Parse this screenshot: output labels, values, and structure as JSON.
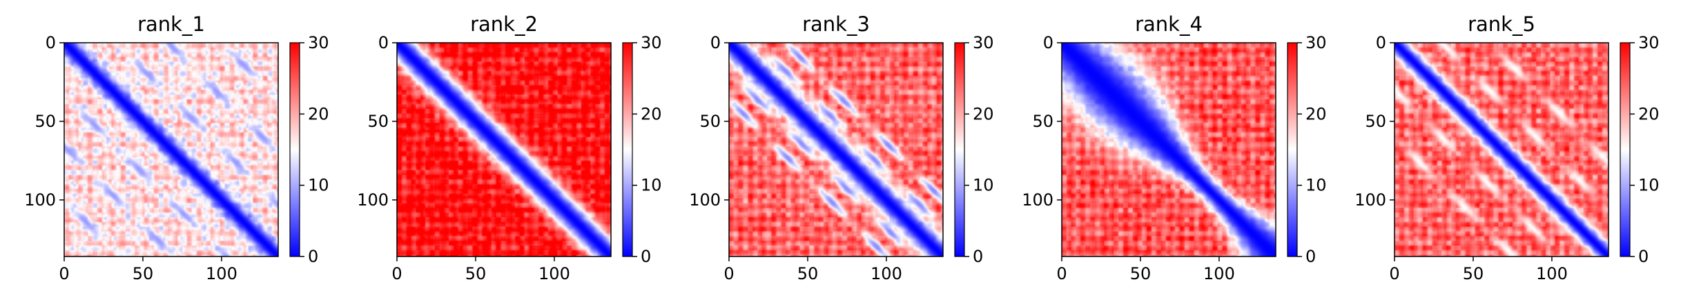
{
  "chart_data": [
    {
      "type": "heatmap",
      "title": "rank_1",
      "x_ticks": [
        "0",
        "50",
        "100"
      ],
      "y_ticks": [
        "0",
        "50",
        "100"
      ],
      "xlim": [
        0,
        136
      ],
      "ylim": [
        136,
        0
      ],
      "n": 136,
      "colormap": "bwr",
      "colorbar_range": [
        0,
        30
      ],
      "colorbar_ticks": [
        "0",
        "10",
        "20",
        "30"
      ],
      "field": {
        "base": 17,
        "diag_width": 6,
        "offdiag_bands": [
          33,
          66,
          100
        ],
        "offdiag_level": 9,
        "block_level": 0
      }
    },
    {
      "type": "heatmap",
      "title": "rank_2",
      "x_ticks": [
        "0",
        "50",
        "100"
      ],
      "y_ticks": [
        "0",
        "50",
        "100"
      ],
      "xlim": [
        0,
        136
      ],
      "ylim": [
        136,
        0
      ],
      "n": 136,
      "colormap": "bwr",
      "colorbar_range": [
        0,
        30
      ],
      "colorbar_ticks": [
        "0",
        "10",
        "20",
        "30"
      ],
      "field": {
        "base": 29,
        "diag_width": 9,
        "offdiag_bands": [],
        "offdiag_level": 29,
        "block_level": 0
      }
    },
    {
      "type": "heatmap",
      "title": "rank_3",
      "x_ticks": [
        "0",
        "50",
        "100"
      ],
      "y_ticks": [
        "0",
        "50",
        "100"
      ],
      "xlim": [
        0,
        136
      ],
      "ylim": [
        136,
        0
      ],
      "n": 136,
      "colormap": "bwr",
      "colorbar_range": [
        0,
        30
      ],
      "colorbar_ticks": [
        "0",
        "10",
        "20",
        "30"
      ],
      "field": {
        "base": 24,
        "diag_width": 8,
        "offdiag_bands": [
          18,
          36
        ],
        "offdiag_level": 8,
        "block_level": 0
      }
    },
    {
      "type": "heatmap",
      "title": "rank_4",
      "x_ticks": [
        "0",
        "50",
        "100"
      ],
      "y_ticks": [
        "0",
        "50",
        "100"
      ],
      "xlim": [
        0,
        136
      ],
      "ylim": [
        136,
        0
      ],
      "n": 136,
      "colormap": "bwr",
      "colorbar_range": [
        0,
        30
      ],
      "colorbar_ticks": [
        "0",
        "10",
        "20",
        "30"
      ],
      "field": {
        "base": 25,
        "diag_width": 15,
        "offdiag_bands": [],
        "offdiag_level": 25,
        "block_level": 1
      }
    },
    {
      "type": "heatmap",
      "title": "rank_5",
      "x_ticks": [
        "0",
        "50",
        "100"
      ],
      "y_ticks": [
        "0",
        "50",
        "100"
      ],
      "xlim": [
        0,
        136
      ],
      "ylim": [
        136,
        0
      ],
      "n": 136,
      "colormap": "bwr",
      "colorbar_range": [
        0,
        30
      ],
      "colorbar_ticks": [
        "0",
        "10",
        "20",
        "30"
      ],
      "field": {
        "base": 24,
        "diag_width": 6,
        "offdiag_bands": [
          30,
          60
        ],
        "offdiag_level": 15,
        "block_level": 0
      }
    }
  ]
}
